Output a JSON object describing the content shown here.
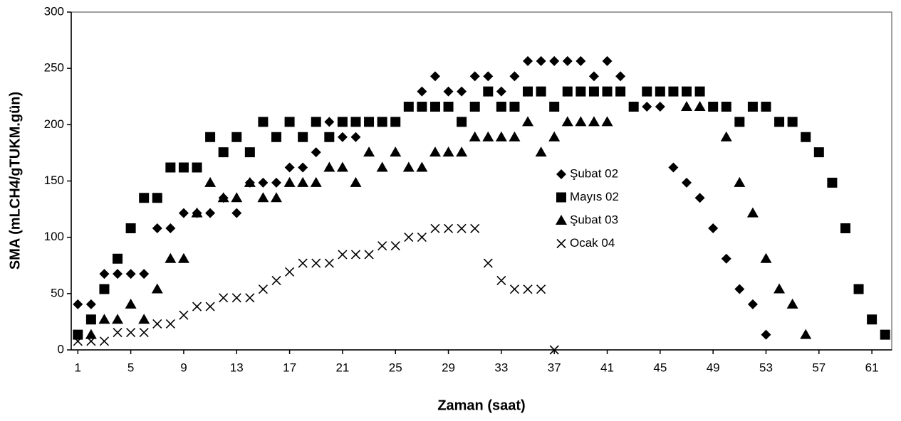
{
  "chart_data": {
    "type": "scatter",
    "x_label": "Zaman (saat)",
    "y_label": "SMA (mLCH4/gTUKM.gün)",
    "x": [
      1,
      2,
      3,
      4,
      5,
      6,
      7,
      8,
      9,
      10,
      11,
      12,
      13,
      14,
      15,
      16,
      17,
      18,
      19,
      20,
      21,
      22,
      23,
      24,
      25,
      26,
      27,
      28,
      29,
      30,
      31,
      32,
      33,
      34,
      35,
      36,
      37,
      38,
      39,
      40,
      41,
      42,
      43,
      44,
      45,
      46,
      47,
      48,
      49,
      50,
      51,
      52,
      53,
      54,
      55,
      56,
      57,
      58,
      59,
      60,
      61,
      62
    ],
    "xlim": [
      0.5,
      62.5
    ],
    "xticks": [
      1,
      5,
      9,
      13,
      17,
      21,
      25,
      29,
      33,
      37,
      41,
      45,
      49,
      53,
      57,
      61
    ],
    "ylim": [
      0,
      300
    ],
    "yticks": [
      0,
      50,
      100,
      150,
      200,
      250,
      300
    ],
    "series": [
      {
        "name": "Şubat 02",
        "color": "#000000",
        "marker": "diamond",
        "values": [
          40.5,
          40.5,
          67.5,
          67.5,
          67.5,
          67.5,
          108,
          108,
          121.5,
          121.5,
          121.5,
          135,
          121.5,
          148.5,
          148.5,
          148.5,
          162,
          162,
          175.5,
          202.5,
          189,
          189,
          202.5,
          202.5,
          202.5,
          216,
          229.5,
          243,
          229.5,
          229.5,
          243,
          243,
          229.5,
          243,
          256.5,
          256.5,
          256.5,
          256.5,
          256.5,
          243,
          256.5,
          243,
          216,
          216,
          216,
          162,
          148.5,
          135,
          108,
          81,
          54,
          40.5,
          13.5,
          null,
          null,
          null,
          null,
          null,
          null,
          null,
          null,
          null
        ]
      },
      {
        "name": "Mayıs 02",
        "color": "#000000",
        "marker": "square",
        "values": [
          13.5,
          27,
          54,
          81,
          108,
          135,
          135,
          162,
          162,
          162,
          189,
          175.5,
          189,
          175.5,
          202.5,
          189,
          202.5,
          189,
          202.5,
          189,
          202.5,
          202.5,
          202.5,
          202.5,
          202.5,
          216,
          216,
          216,
          216,
          202.5,
          216,
          229.5,
          216,
          216,
          229.5,
          229.5,
          216,
          229.5,
          229.5,
          229.5,
          229.5,
          229.5,
          216,
          229.5,
          229.5,
          229.5,
          229.5,
          229.5,
          216,
          216,
          202.5,
          216,
          216,
          202.5,
          202.5,
          189,
          175.5,
          148.5,
          108,
          54,
          27,
          13.5
        ]
      },
      {
        "name": "Şubat 03",
        "color": "#000000",
        "marker": "triangle",
        "values": [
          null,
          13.5,
          27,
          27,
          40.5,
          27,
          54,
          81,
          81,
          121.5,
          148.5,
          135,
          135,
          148.5,
          135,
          135,
          148.5,
          148.5,
          148.5,
          162,
          162,
          148.5,
          175.5,
          162,
          175.5,
          162,
          162,
          175.5,
          175.5,
          175.5,
          189,
          189,
          189,
          189,
          202.5,
          175.5,
          189,
          202.5,
          202.5,
          202.5,
          202.5,
          null,
          null,
          null,
          null,
          null,
          216,
          216,
          null,
          189,
          148.5,
          121.5,
          81,
          54,
          40.5,
          13.5,
          null,
          null,
          null,
          null,
          null,
          null
        ]
      },
      {
        "name": "Ocak 04",
        "color": "#000000",
        "marker": "cross",
        "values": [
          7.7,
          7.7,
          7.7,
          15.4,
          15.4,
          15.4,
          23.1,
          23.1,
          30.8,
          38.5,
          38.5,
          46.2,
          46.2,
          46.2,
          53.9,
          61.6,
          69.3,
          77,
          77,
          77,
          84.7,
          84.7,
          84.7,
          92.4,
          92.4,
          100.1,
          100.1,
          107.8,
          107.8,
          107.8,
          107.8,
          77,
          61.6,
          53.9,
          53.9,
          53.9,
          0,
          null,
          null,
          null,
          null,
          null,
          null,
          null,
          null,
          null,
          null,
          null,
          null,
          null,
          null,
          null,
          null,
          null,
          null,
          null,
          null,
          null,
          null,
          null,
          null,
          null
        ]
      }
    ]
  }
}
